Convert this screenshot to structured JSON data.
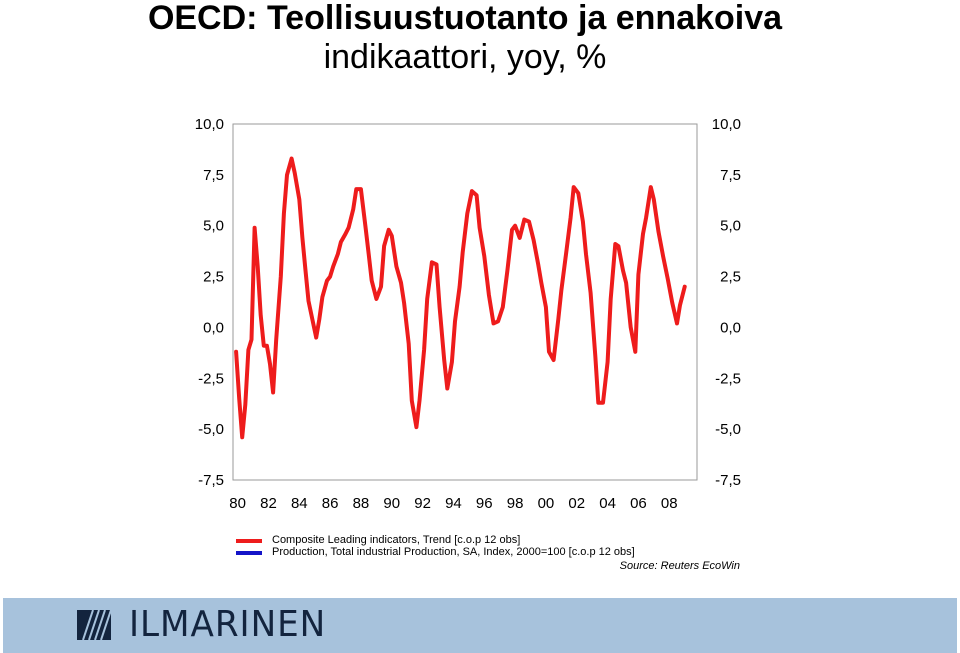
{
  "title": {
    "line1": "OECD: Teollisuustuotanto ja ennakoiva",
    "line2": "indikaattori, yoy, %"
  },
  "source": "Source: Reuters EcoWin",
  "footer": {
    "logo_text": "ILMARINEN"
  },
  "colors": {
    "red_series": "#ee1c1c",
    "blue_series": "#1414c8",
    "footer": "#a7c2dc",
    "logo": "#13243e"
  },
  "chart_data": {
    "type": "line",
    "title": "OECD: Teollisuustuotanto ja ennakoiva indikaattori, yoy, %",
    "xlabel": "",
    "ylabel": "",
    "xlim": [
      1979.7,
      2009.8
    ],
    "ylim": [
      -7.5,
      10.0
    ],
    "y_ticks_left": [
      "10,0",
      "7,5",
      "5,0",
      "2,5",
      "0,0",
      "-2,5",
      "-5,0",
      "-7,5"
    ],
    "y_ticks_right": [
      "10,0",
      "7,5",
      "5,0",
      "2,5",
      "0,0",
      "-2,5",
      "-5,0",
      "-7,5"
    ],
    "y_tick_values": [
      10,
      7.5,
      5,
      2.5,
      0,
      -2.5,
      -5,
      -7.5
    ],
    "x_ticks": [
      "80",
      "82",
      "84",
      "86",
      "88",
      "90",
      "92",
      "94",
      "96",
      "98",
      "00",
      "02",
      "04",
      "06",
      "08"
    ],
    "x_tick_values": [
      1980,
      1982,
      1984,
      1986,
      1988,
      1990,
      1992,
      1994,
      1996,
      1998,
      2000,
      2002,
      2004,
      2006,
      2008
    ],
    "grid": false,
    "legend_position": "bottom",
    "series": [
      {
        "name": "Composite Leading indicators, Trend [c.o.p 12 obs]",
        "color": "#ee1c1c",
        "x": [
          1979.9,
          1980.1,
          1980.3,
          1980.5,
          1980.7,
          1980.9,
          1981.1,
          1981.3,
          1981.5,
          1981.7,
          1981.9,
          1982.1,
          1982.3,
          1982.5,
          1982.8,
          1983.0,
          1983.2,
          1983.5,
          1983.7,
          1984.0,
          1984.2,
          1984.4,
          1984.6,
          1984.9,
          1985.1,
          1985.3,
          1985.5,
          1985.8,
          1986.0,
          1986.2,
          1986.5,
          1986.7,
          1987.0,
          1987.2,
          1987.5,
          1987.7,
          1988.0,
          1988.3,
          1988.5,
          1988.7,
          1989.0,
          1989.3,
          1989.5,
          1989.8,
          1990.0,
          1990.3,
          1990.6,
          1990.8,
          1991.1,
          1991.3,
          1991.6,
          1991.8,
          1992.1,
          1992.3,
          1992.6,
          1992.9,
          1993.1,
          1993.4,
          1993.6,
          1993.9,
          1994.1,
          1994.4,
          1994.6,
          1994.9,
          1995.2,
          1995.5,
          1995.7,
          1996.0,
          1996.3,
          1996.6,
          1996.9,
          1997.2,
          1997.5,
          1997.8,
          1998.0,
          1998.3,
          1998.6,
          1998.9,
          1999.2,
          1999.5,
          1999.7,
          2000.0,
          2000.2,
          2000.5,
          2000.8,
          2001.0,
          2001.3,
          2001.6,
          2001.8,
          2002.1,
          2002.4,
          2002.6,
          2002.9,
          2003.2,
          2003.4,
          2003.7,
          2004.0,
          2004.2,
          2004.5,
          2004.7,
          2005.0,
          2005.2,
          2005.5,
          2005.8,
          2006.0,
          2006.3,
          2006.5,
          2006.8,
          2007.0,
          2007.3,
          2007.6,
          2007.9,
          2008.2,
          2008.5,
          2008.7,
          2009.0
        ],
        "y": [
          -1.2,
          -3.5,
          -5.4,
          -3.8,
          -1.1,
          -0.6,
          4.9,
          3.0,
          0.6,
          -0.9,
          -0.9,
          -1.8,
          -3.2,
          -0.6,
          2.5,
          5.6,
          7.5,
          8.3,
          7.6,
          6.3,
          4.4,
          2.8,
          1.3,
          0.2,
          -0.5,
          0.4,
          1.5,
          2.3,
          2.5,
          3.0,
          3.6,
          4.2,
          4.6,
          4.9,
          5.8,
          6.8,
          6.8,
          4.9,
          3.6,
          2.3,
          1.4,
          2.0,
          4.0,
          4.8,
          4.5,
          3.0,
          2.2,
          1.2,
          -0.8,
          -3.6,
          -4.9,
          -3.6,
          -1.1,
          1.4,
          3.2,
          3.1,
          1.0,
          -1.6,
          -3.0,
          -1.7,
          0.3,
          2.0,
          3.7,
          5.6,
          6.7,
          6.5,
          4.9,
          3.5,
          1.6,
          0.2,
          0.3,
          1.0,
          2.8,
          4.8,
          5.0,
          4.4,
          5.3,
          5.2,
          4.3,
          3.1,
          2.2,
          1.0,
          -1.2,
          -1.6,
          0.4,
          1.8,
          3.6,
          5.4,
          6.9,
          6.6,
          5.2,
          3.6,
          1.7,
          -1.4,
          -3.7,
          -3.7,
          -1.7,
          1.4,
          4.1,
          4.0,
          2.8,
          2.2,
          0.0,
          -1.2,
          2.6,
          4.6,
          5.4,
          6.9,
          6.3,
          4.7,
          3.5,
          2.4,
          1.2,
          0.2,
          1.1,
          2.0
        ],
        "notes": ""
      },
      {
        "name": "Production, Total industrial Production, SA, Index, 2000=100 [c.o.p 12 obs]",
        "color": "#1414c8",
        "x": [],
        "y": []
      }
    ]
  }
}
